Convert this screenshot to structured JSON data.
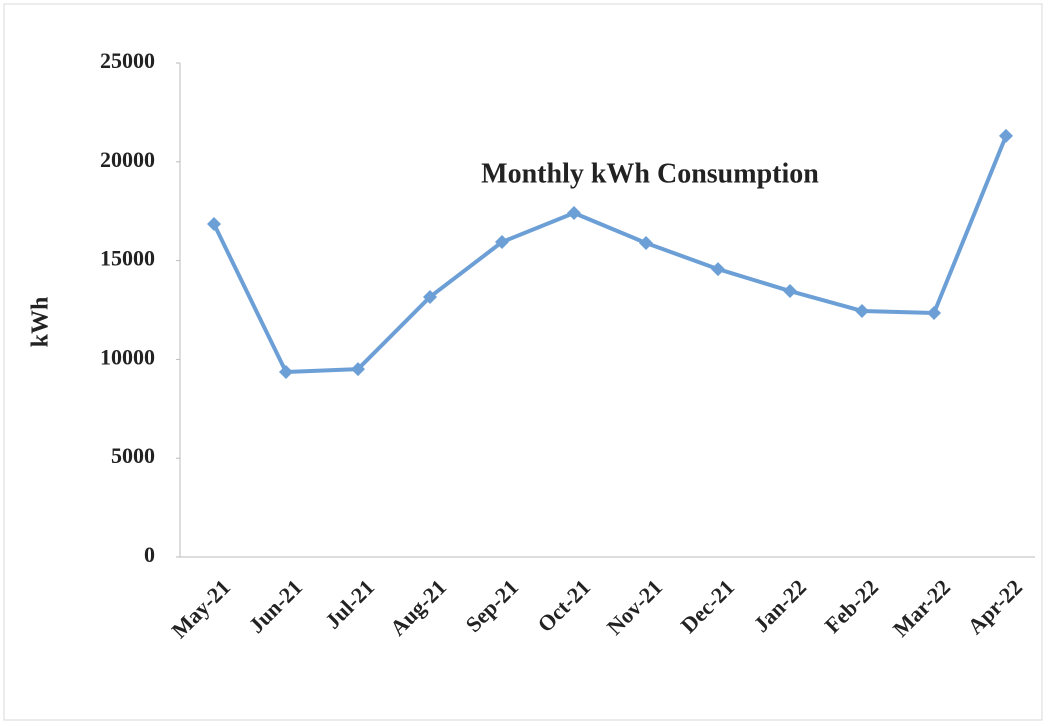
{
  "chart_data": {
    "type": "line",
    "title": "Monthly  kWh Consumption",
    "y_label": "kWh",
    "categories": [
      "May-21",
      "Jun-21",
      "Jul-21",
      "Aug-21",
      "Sep-21",
      "Oct-21",
      "Nov-21",
      "Dec-21",
      "Jan-22",
      "Feb-22",
      "Mar-22",
      "Apr-22"
    ],
    "values": [
      16850,
      9360,
      9510,
      13160,
      15940,
      17410,
      15890,
      14570,
      13460,
      12450,
      12350,
      21310
    ],
    "color": "#6b9fd6",
    "ylim": [
      0,
      25000
    ],
    "yticks": [
      0,
      5000,
      10000,
      15000,
      20000,
      25000
    ]
  }
}
